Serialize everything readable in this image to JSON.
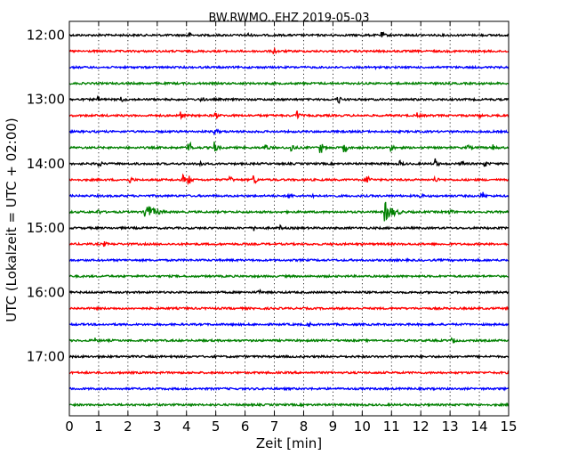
{
  "chart_data": {
    "type": "line",
    "title": "BW.RWMO..EHZ 2019-05-03",
    "xlabel": "Zeit  [min]",
    "ylabel": "UTC (Lokalzeit = UTC + 02:00)",
    "xlim": [
      0,
      15
    ],
    "x_ticks": [
      "0",
      "1",
      "2",
      "3",
      "4",
      "5",
      "6",
      "7",
      "8",
      "9",
      "10",
      "11",
      "12",
      "13",
      "14",
      "15"
    ],
    "y_tick_labels": [
      "12:00",
      "13:00",
      "14:00",
      "15:00",
      "16:00",
      "17:00"
    ],
    "grid": "vertical dotted",
    "trace_colors": [
      "#000000",
      "#ff0000",
      "#0000ff",
      "#008000"
    ],
    "traces": [
      {
        "start": "12:00",
        "events": [
          [
            6.1,
            0.3
          ],
          [
            4.1,
            0.35
          ],
          [
            10.7,
            0.4
          ]
        ]
      },
      {
        "start": "12:15",
        "events": [
          [
            7.0,
            0.45
          ]
        ]
      },
      {
        "start": "12:30",
        "events": [
          [
            10.5,
            0.35
          ]
        ]
      },
      {
        "start": "12:45",
        "events": []
      },
      {
        "start": "13:00",
        "events": [
          [
            1.0,
            0.35
          ],
          [
            1.8,
            0.4
          ],
          [
            4.5,
            0.45
          ],
          [
            9.2,
            0.7
          ]
        ]
      },
      {
        "start": "13:15",
        "events": [
          [
            3.8,
            0.75
          ],
          [
            5.0,
            0.6
          ],
          [
            7.8,
            0.85
          ],
          [
            11.9,
            0.4
          ],
          [
            14.0,
            0.3
          ]
        ]
      },
      {
        "start": "13:30",
        "events": [
          [
            5.0,
            0.5
          ]
        ]
      },
      {
        "start": "13:45",
        "events": [
          [
            4.1,
            1.3
          ],
          [
            5.0,
            1.0
          ],
          [
            6.7,
            0.8
          ],
          [
            7.6,
            0.8
          ],
          [
            8.6,
            1.0
          ],
          [
            9.4,
            1.0
          ],
          [
            11.0,
            0.6
          ],
          [
            13.6,
            0.5
          ],
          [
            14.5,
            0.5
          ]
        ]
      },
      {
        "start": "14:00",
        "events": [
          [
            1.0,
            0.8
          ],
          [
            4.5,
            0.5
          ],
          [
            11.3,
            0.5
          ],
          [
            12.5,
            0.9
          ],
          [
            13.4,
            0.6
          ],
          [
            14.2,
            0.5
          ]
        ]
      },
      {
        "start": "14:15",
        "events": [
          [
            2.1,
            0.5
          ],
          [
            3.9,
            0.8
          ],
          [
            4.1,
            0.7
          ],
          [
            5.5,
            0.5
          ],
          [
            6.3,
            1.2
          ],
          [
            10.2,
            0.9
          ],
          [
            12.5,
            0.6
          ]
        ]
      },
      {
        "start": "14:30",
        "events": [
          [
            7.5,
            0.5
          ],
          [
            8.3,
            0.4
          ],
          [
            14.1,
            0.8
          ],
          [
            12.0,
            0.3
          ]
        ]
      },
      {
        "start": "14:45",
        "events": [
          [
            1.0,
            0.4
          ],
          [
            2.6,
            1.8
          ],
          [
            10.8,
            1.8
          ],
          [
            13.0,
            0.6
          ]
        ]
      },
      {
        "start": "15:00",
        "events": [
          [
            6.3,
            0.4
          ],
          [
            7.2,
            0.35
          ]
        ]
      },
      {
        "start": "15:15",
        "events": [
          [
            1.2,
            0.35
          ]
        ]
      },
      {
        "start": "15:30",
        "events": []
      },
      {
        "start": "15:45",
        "events": []
      },
      {
        "start": "16:00",
        "events": [
          [
            6.5,
            0.3
          ]
        ]
      },
      {
        "start": "16:15",
        "events": []
      },
      {
        "start": "16:30",
        "events": [
          [
            8.2,
            0.3
          ]
        ]
      },
      {
        "start": "16:45",
        "events": [
          [
            0.9,
            0.35
          ],
          [
            13.1,
            0.45
          ]
        ]
      },
      {
        "start": "17:00",
        "events": []
      },
      {
        "start": "17:15",
        "events": []
      },
      {
        "start": "17:30",
        "events": []
      },
      {
        "start": "17:45",
        "events": []
      }
    ]
  }
}
